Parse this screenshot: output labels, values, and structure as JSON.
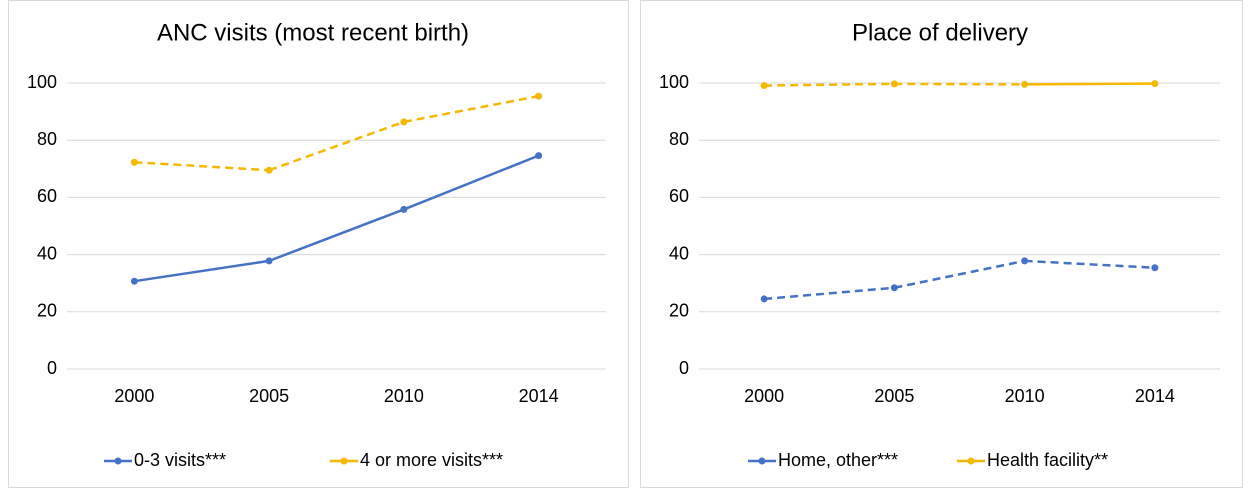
{
  "chart_data": [
    {
      "type": "line",
      "title": "ANC visits (most recent birth)",
      "categories": [
        "2000",
        "2005",
        "2010",
        "2014"
      ],
      "ylim": [
        0,
        100
      ],
      "yticks": [
        0,
        20,
        40,
        60,
        80,
        100
      ],
      "grid": true,
      "legend": "bottom",
      "series": [
        {
          "name": "0-3 visits***",
          "color": "#4472c4",
          "line_styles": [
            "solid",
            "solid",
            "solid"
          ],
          "values": [
            30.7,
            37.8,
            55.8,
            74.6
          ]
        },
        {
          "name": "4 or more visits***",
          "color": "#f4b800",
          "line_styles": [
            "dashed",
            "dashed",
            "dashed"
          ],
          "values": [
            72.3,
            69.5,
            86.4,
            95.4
          ]
        }
      ]
    },
    {
      "type": "line",
      "title": "Place of delivery",
      "categories": [
        "2000",
        "2005",
        "2010",
        "2014"
      ],
      "ylim": [
        0,
        100
      ],
      "yticks": [
        0,
        20,
        40,
        60,
        80,
        100
      ],
      "grid": true,
      "legend": "bottom",
      "series": [
        {
          "name": "Home, other***",
          "color": "#4472c4",
          "line_styles": [
            "dashed",
            "dashed",
            "dashed"
          ],
          "values": [
            24.5,
            28.4,
            37.8,
            35.4
          ]
        },
        {
          "name": "Health facility**",
          "color": "#f4b800",
          "line_styles": [
            "dashed",
            "dashed",
            "solid"
          ],
          "values": [
            99.1,
            99.7,
            99.5,
            99.8
          ]
        }
      ]
    }
  ]
}
